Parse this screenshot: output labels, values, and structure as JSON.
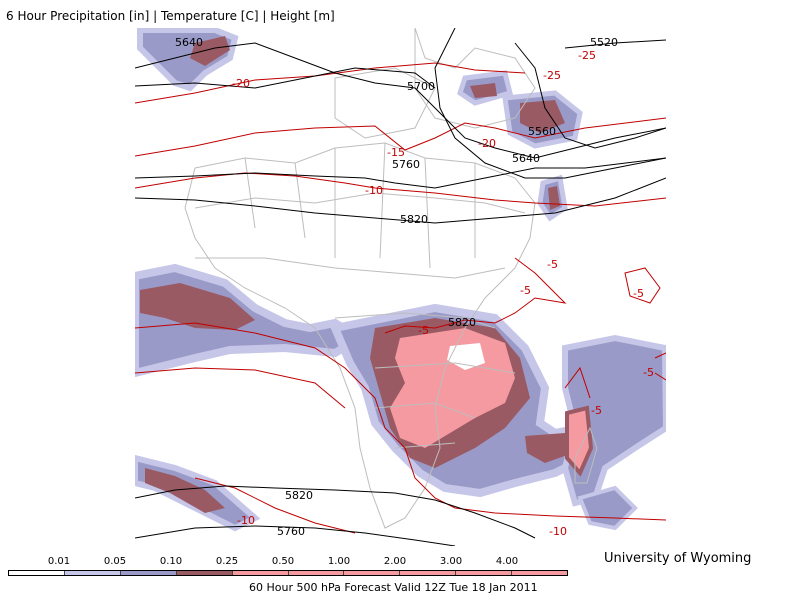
{
  "title": "6 Hour Precipitation [in] | Temperature [C] | Height [m]",
  "credit": "University of Wyoming",
  "footer": "60 Hour 500 hPa Forecast Valid 12Z Tue 18 Jan 2011",
  "colors": {
    "height": "#000000",
    "temperature": "#c00000",
    "borders": "#bdbdbd",
    "precip_light": "#c6c6e8",
    "precip_med": "#9a9ac8",
    "precip_heavy": "#9a5a64",
    "precip_vheavy": "#f49aa0"
  },
  "legend": {
    "thresholds": [
      "0.01",
      "0.05",
      "0.10",
      "0.25",
      "0.50",
      "1.00",
      "2.00",
      "3.00",
      "4.00"
    ],
    "colors": [
      "#ffffff",
      "#c6c6e8",
      "#9a9ac8",
      "#9a5a64",
      "#f49aa0",
      "#f49aa0",
      "#f49aa0",
      "#f49aa0",
      "#f49aa0",
      "#f49aa0"
    ]
  },
  "height_labels": [
    "5640",
    "5520",
    "5700",
    "5560",
    "5640",
    "5760",
    "5820",
    "5820",
    "5820",
    "5760"
  ],
  "temp_labels": [
    "-25",
    "-25",
    "-20",
    "-20",
    "-15",
    "-10",
    "-5",
    "-5",
    "-5",
    "-5",
    "-5",
    "-5",
    "-10",
    "-10"
  ]
}
